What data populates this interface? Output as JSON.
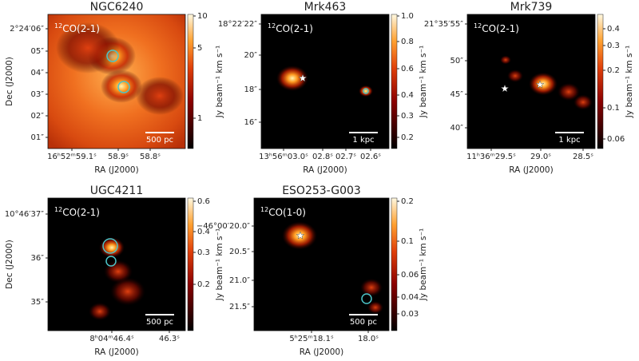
{
  "panels": [
    {
      "title": "NGC6240",
      "isotope": "12",
      "line": "CO(2-1)",
      "yticks": [
        "2°24′06″",
        "05″",
        "04″",
        "03″",
        "02″",
        "01″"
      ],
      "xticks": [
        "16ʰ52ᵐ59.1ˢ",
        "58.9ˢ",
        "58.8ˢ"
      ],
      "cbar_ticks": [
        "10",
        "5",
        "1"
      ],
      "cbar_label": "Jy beam⁻¹ km s⁻¹",
      "xlabel": "RA (J2000)",
      "ylabel": "Dec (J2000)",
      "scalebar": "500 pc"
    },
    {
      "title": "Mrk463",
      "isotope": "12",
      "line": "CO(2-1)",
      "yticks": [
        "18°22′22″",
        "20″",
        "18″",
        "16″"
      ],
      "xticks": [
        "13ʰ56ᵐ03.0ˢ",
        "02.8ˢ",
        "02.7ˢ",
        "02.6ˢ"
      ],
      "cbar_ticks": [
        "1.0",
        "0.8",
        "0.6",
        "0.4",
        "0.3",
        "0.2"
      ],
      "cbar_label": "Jy beam⁻¹ km s⁻¹",
      "xlabel": "RA (J2000)",
      "scalebar": "1 kpc"
    },
    {
      "title": "Mrk739",
      "isotope": "12",
      "line": "CO(2-1)",
      "yticks": [
        "21°35′55″",
        "50″",
        "45″",
        "40″"
      ],
      "xticks": [
        "11ʰ36ᵐ29.5ˢ",
        "29.0ˢ",
        "28.5ˢ"
      ],
      "cbar_ticks": [
        "0.4",
        "0.3",
        "0.2",
        "0.1",
        "0.06"
      ],
      "cbar_label": "Jy beam⁻¹ km s⁻¹",
      "xlabel": "RA (J2000)",
      "scalebar": "1 kpc"
    },
    {
      "title": "UGC4211",
      "isotope": "12",
      "line": "CO(2-1)",
      "yticks": [
        "10°46′37″",
        "36″",
        "35″"
      ],
      "xticks": [
        "8ʰ04ᵐ46.4ˢ",
        "46.3ˢ"
      ],
      "cbar_ticks": [
        "0.6",
        "0.4",
        "0.3",
        "0.2"
      ],
      "cbar_label": "Jy beam⁻¹ km s⁻¹",
      "xlabel": "RA (J2000)",
      "ylabel": "Dec (J2000)",
      "scalebar": "500 pc"
    },
    {
      "title": "ESO253-G003",
      "isotope": "12",
      "line": "CO(1-0)",
      "yticks": [
        "−46°00′20.0″",
        "20.5″",
        "21.0″",
        "21.5″"
      ],
      "xticks": [
        "5ʰ25ᵐ18.1ˢ",
        "18.0ˢ"
      ],
      "cbar_ticks": [
        "0.2",
        "0.1",
        "0.06",
        "0.04",
        "0.03"
      ],
      "cbar_label": "Jy beam⁻¹ km s⁻¹",
      "xlabel": "RA (J2000)",
      "scalebar": "500 pc"
    }
  ]
}
